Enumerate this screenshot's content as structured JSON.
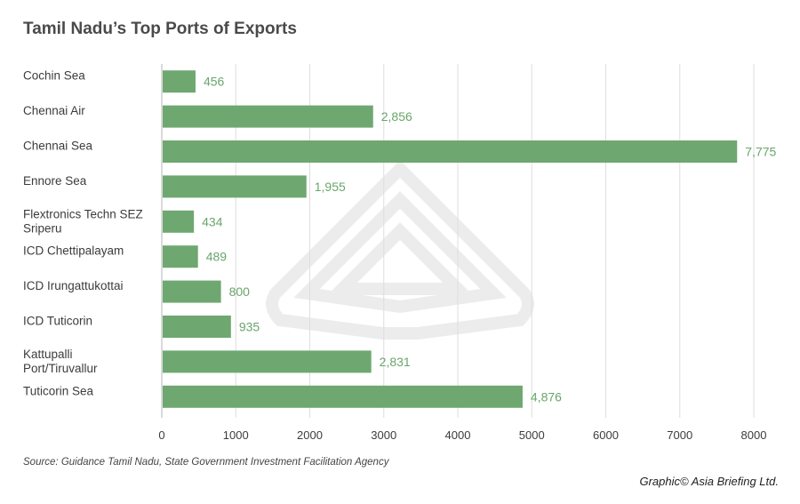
{
  "header": {
    "title": "Tamil Nadu’s Top Ports of Exports"
  },
  "chart_data": {
    "type": "bar",
    "orientation": "horizontal",
    "title": "Tamil Nadu’s Top Ports of Exports",
    "xlabel": "",
    "ylabel": "",
    "categories": [
      "Cochin Sea",
      "Chennai Air",
      "Chennai Sea",
      "Ennore Sea",
      "Flextronics Techn SEZ Sriperu",
      "ICD Chettipalayam",
      "ICD Irungattukottai",
      "ICD Tuticorin",
      "Kattupalli Port/Tiruvallur",
      "Tuticorin Sea"
    ],
    "values": [
      456,
      2856,
      7775,
      1955,
      434,
      489,
      800,
      935,
      2831,
      4876
    ],
    "value_labels": [
      "456",
      "2,856",
      "7,775",
      "1,955",
      "434",
      "489",
      "800",
      "935",
      "2,831",
      "4,876"
    ],
    "xlim": [
      0,
      8000
    ],
    "xticks": [
      0,
      1000,
      2000,
      3000,
      4000,
      5000,
      6000,
      7000,
      8000
    ],
    "grid": "vertical",
    "bar_color": "#6ea870",
    "value_label_color": "#6aa56c",
    "grid_color": "#dedede"
  },
  "footer": {
    "source": "Source: Guidance Tamil Nadu, State Government Investment Facilitation Agency",
    "credit": "Graphic© Asia Briefing Ltd."
  }
}
